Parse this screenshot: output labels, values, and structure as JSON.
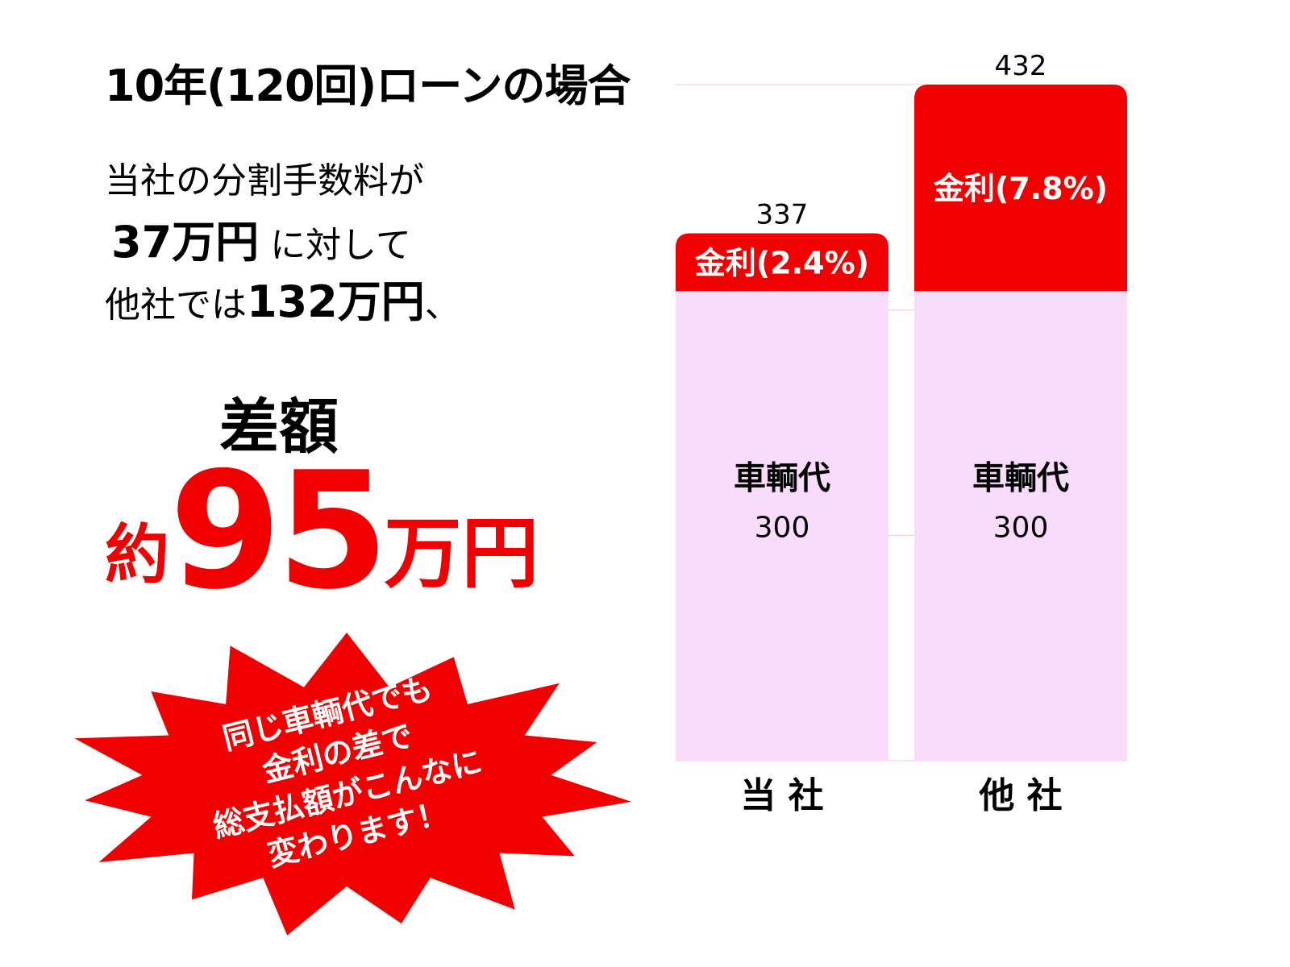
{
  "title": "10年(120回)ローンの場合",
  "paragraph": {
    "line1": "当社の分割手数料が",
    "line2_bold": "37万円",
    "line2_rest": "に対して",
    "line3_start": "他社では",
    "line3_bold": "132万円",
    "line3_end": "、"
  },
  "difference": {
    "label": "差額",
    "prefix": "約",
    "number": "95",
    "unit": "万円"
  },
  "burst": {
    "lines": [
      "同じ車輌代でも",
      "金利の差で",
      "総支払額がこんなに",
      "変わります！"
    ]
  },
  "colors": {
    "interest": "#f00000",
    "vehicle": "#f9dcfb",
    "gridline": "#f3c9c9",
    "accent": "#f00000"
  },
  "chart_data": {
    "type": "bar",
    "stacked": true,
    "categories": [
      "当 社",
      "他 社"
    ],
    "series": [
      {
        "name": "車輌代",
        "values": [
          300,
          300
        ],
        "labels": [
          "車輌代\n300",
          "車輌代\n300"
        ]
      },
      {
        "name": "金利",
        "values": [
          37,
          132
        ],
        "labels": [
          "金利(2.4%)",
          "金利(7.8%)"
        ]
      }
    ],
    "totals": [
      337,
      432
    ],
    "ylim": [
      0,
      432
    ],
    "grid": true
  }
}
